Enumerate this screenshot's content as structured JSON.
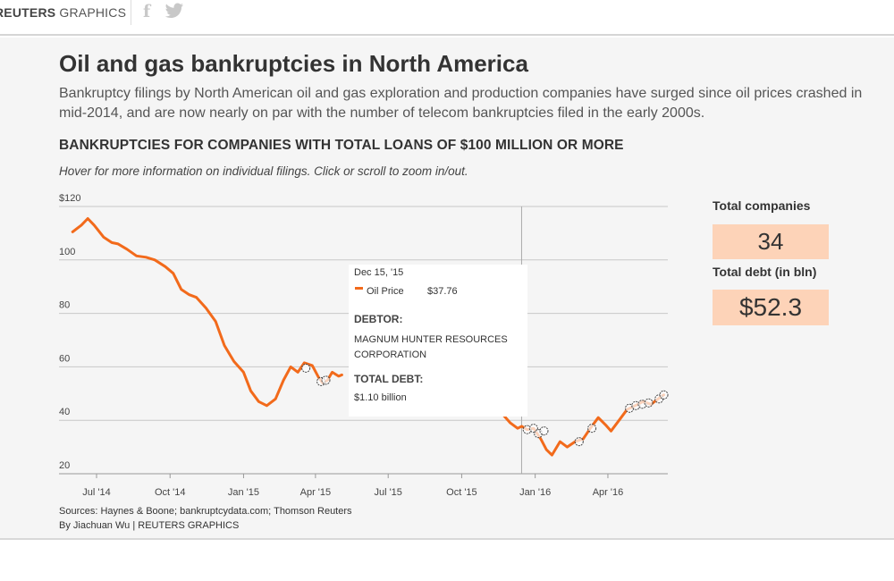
{
  "header": {
    "brand_bold": "REUTERS",
    "brand_light": "GRAPHICS",
    "social": [
      "facebook-icon",
      "twitter-icon"
    ]
  },
  "title": "Oil and gas bankruptcies in North America",
  "description": "Bankruptcy filings by North American oil and gas exploration and production companies have surged since oil prices crashed in mid-2014, and are now nearly on par with the number of telecom bankruptcies filed in the early 2000s.",
  "subheading": "BANKRUPTCIES FOR COMPANIES WITH TOTAL LOANS OF $100 MILLION OR MORE",
  "hint": "Hover for more information on individual filings. Click or scroll to zoom in/out.",
  "tooltip": {
    "date": "Dec 15, '15",
    "series_name": "Oil Price",
    "value": "$37.76",
    "debtor_label": "DEBTOR:",
    "debtor": "MAGNUM HUNTER RESOURCES CORPORATION",
    "debt_label": "TOTAL DEBT:",
    "debt": "$1.10 billion"
  },
  "stats": {
    "companies_label": "Total companies",
    "companies_value": "34",
    "debt_label": "Total debt (in bln)",
    "debt_value": "$52.3"
  },
  "sources": "Sources: Haynes & Boone; bankruptcydata.com; Thomson Reuters",
  "credit": "By Jiachuan Wu | REUTERS GRAPHICS",
  "colors": {
    "line": "#f26a1b",
    "stat_box": "#fdd3b8",
    "grid": "#c8c8c8",
    "background": "#f5f5f5"
  },
  "chart_data": {
    "type": "line",
    "title": "",
    "xlabel": "",
    "ylabel": "",
    "x_ticks": [
      "Jul '14",
      "Oct '14",
      "Jan '15",
      "Apr '15",
      "Jul '15",
      "Oct '15",
      "Jan '16",
      "Apr '16"
    ],
    "x_range": [
      "2014-05-15",
      "2016-06-15"
    ],
    "y_ticks": [
      "$120",
      "100",
      "80",
      "60",
      "40",
      "20"
    ],
    "ylim": [
      20,
      120
    ],
    "grid": true,
    "hover_date": "2015-12-15",
    "series": [
      {
        "name": "Oil Price",
        "segments": [
          [
            [
              "2014-06-01",
              110.5
            ],
            [
              "2014-06-12",
              113
            ],
            [
              "2014-06-20",
              115.5
            ],
            [
              "2014-06-28",
              113
            ],
            [
              "2014-07-10",
              108.5
            ],
            [
              "2014-07-20",
              106.5
            ],
            [
              "2014-07-28",
              106
            ],
            [
              "2014-08-08",
              104
            ],
            [
              "2014-08-20",
              101.5
            ],
            [
              "2014-09-01",
              101
            ],
            [
              "2014-09-12",
              100
            ],
            [
              "2014-09-25",
              97.5
            ],
            [
              "2014-10-05",
              95
            ],
            [
              "2014-10-15",
              89
            ],
            [
              "2014-10-25",
              87
            ],
            [
              "2014-11-03",
              86
            ],
            [
              "2014-11-15",
              82
            ],
            [
              "2014-11-27",
              77
            ],
            [
              "2014-12-08",
              68
            ],
            [
              "2014-12-20",
              62
            ],
            [
              "2015-01-01",
              58
            ],
            [
              "2015-01-10",
              51
            ],
            [
              "2015-01-20",
              47
            ],
            [
              "2015-01-30",
              45.5
            ],
            [
              "2015-02-10",
              48
            ],
            [
              "2015-02-20",
              55
            ],
            [
              "2015-03-01",
              60
            ],
            [
              "2015-03-10",
              58
            ],
            [
              "2015-03-18",
              61.5
            ],
            [
              "2015-03-28",
              60.5
            ],
            [
              "2015-04-05",
              56
            ],
            [
              "2015-04-10",
              54
            ],
            [
              "2015-04-16",
              55
            ],
            [
              "2015-04-22",
              58
            ],
            [
              "2015-04-30",
              56.5
            ],
            [
              "2015-05-04",
              57
            ]
          ],
          [
            [
              "2015-11-15",
              43
            ],
            [
              "2015-11-22",
              42
            ],
            [
              "2015-12-01",
              39
            ],
            [
              "2015-12-10",
              37
            ],
            [
              "2015-12-15",
              37.76
            ],
            [
              "2015-12-22",
              36.5
            ],
            [
              "2015-12-30",
              37
            ],
            [
              "2016-01-08",
              33
            ],
            [
              "2016-01-15",
              29
            ],
            [
              "2016-01-22",
              27
            ],
            [
              "2016-02-01",
              32
            ],
            [
              "2016-02-10",
              30
            ],
            [
              "2016-02-20",
              32
            ],
            [
              "2016-03-01",
              33
            ],
            [
              "2016-03-10",
              37
            ],
            [
              "2016-03-20",
              41
            ],
            [
              "2016-03-30",
              38
            ],
            [
              "2016-04-05",
              36
            ],
            [
              "2016-04-15",
              40
            ],
            [
              "2016-04-25",
              44
            ],
            [
              "2016-05-05",
              45.5
            ],
            [
              "2016-05-15",
              47
            ],
            [
              "2016-05-25",
              46
            ],
            [
              "2016-06-05",
              48.5
            ],
            [
              "2016-06-10",
              49.5
            ]
          ]
        ]
      }
    ],
    "filings": [
      [
        "2015-03-20",
        59.5
      ],
      [
        "2015-04-08",
        54.5
      ],
      [
        "2015-04-14",
        55
      ],
      [
        "2015-12-22",
        36.5
      ],
      [
        "2015-12-30",
        37
      ],
      [
        "2016-01-05",
        35
      ],
      [
        "2016-01-12",
        36
      ],
      [
        "2016-02-25",
        32
      ],
      [
        "2016-03-12",
        37
      ],
      [
        "2016-04-28",
        44.5
      ],
      [
        "2016-05-06",
        45.5
      ],
      [
        "2016-05-14",
        46
      ],
      [
        "2016-05-22",
        46.5
      ],
      [
        "2016-06-04",
        48
      ],
      [
        "2016-06-10",
        49.5
      ]
    ]
  }
}
